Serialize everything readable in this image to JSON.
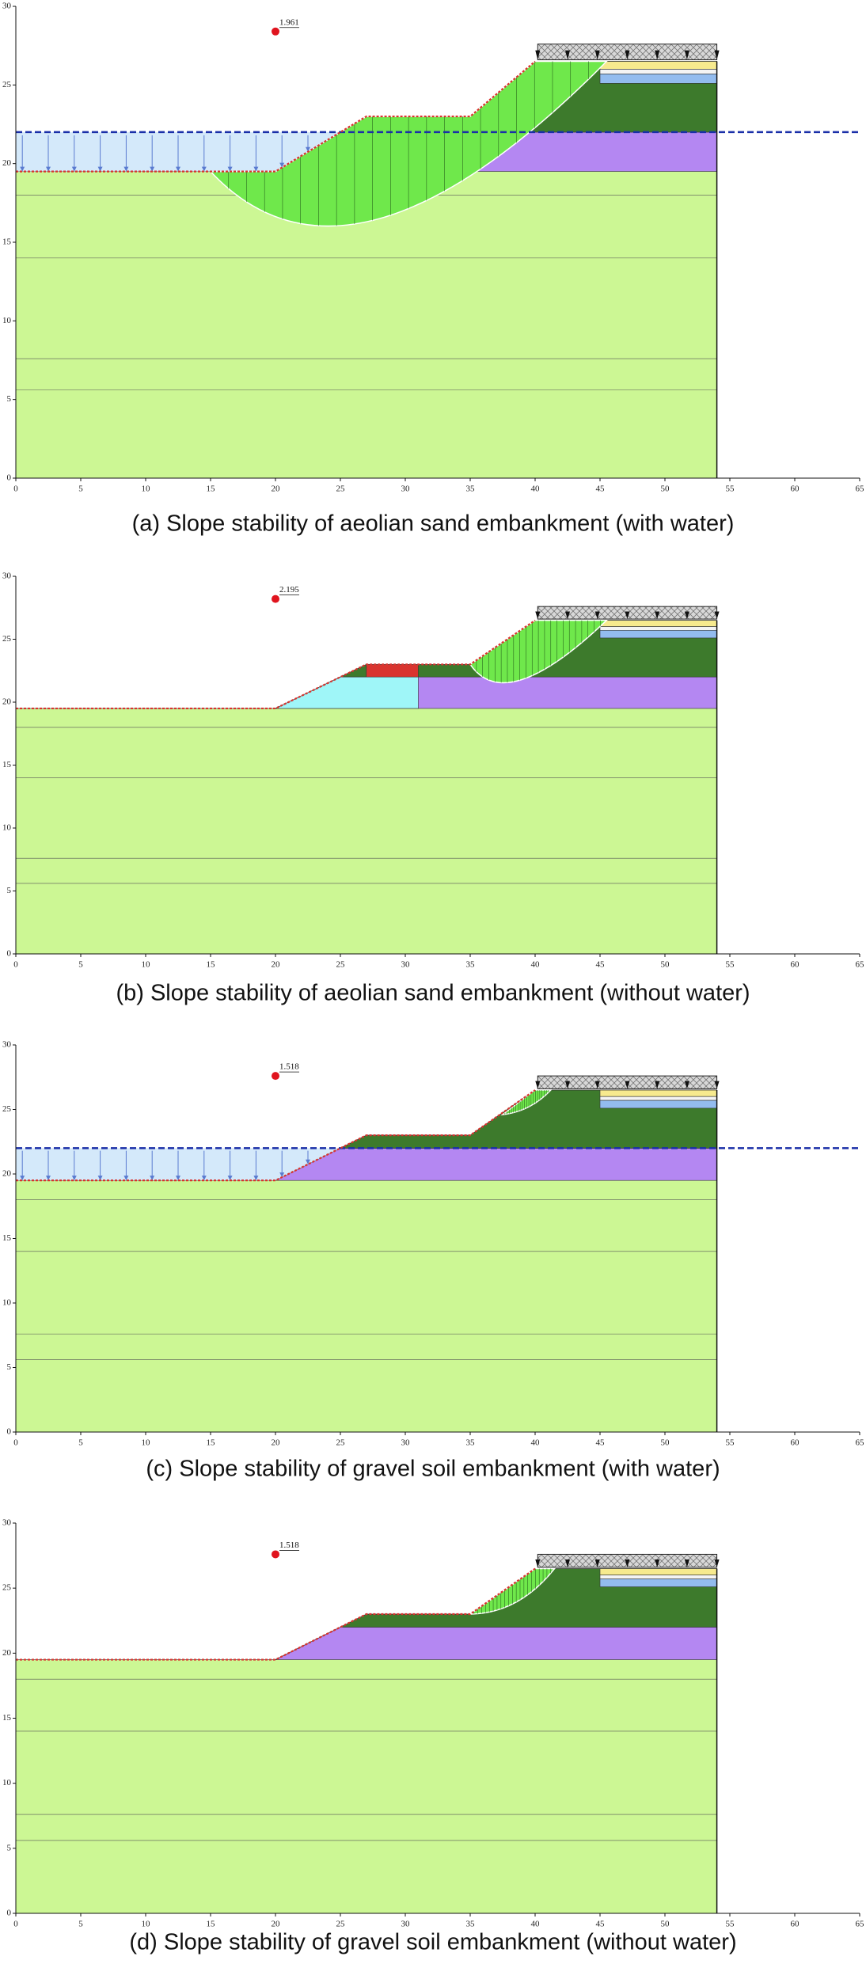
{
  "panels": [
    {
      "caption": "(a) Slope stability of aeolian sand embankment (with water)",
      "factor_of_safety": 1.961,
      "xlim": [
        0,
        65
      ],
      "ylim": [
        0,
        30
      ],
      "xticks": [
        0,
        5,
        10,
        15,
        20,
        25,
        30,
        35,
        40,
        45,
        50,
        55,
        60,
        65
      ],
      "yticks": [
        0,
        5,
        10,
        15,
        20,
        25,
        30
      ]
    },
    {
      "caption": "(b) Slope stability of aeolian sand embankment (without water)",
      "factor_of_safety": 2.195,
      "xlim": [
        0,
        65
      ],
      "ylim": [
        0,
        30
      ],
      "xticks": [
        0,
        5,
        10,
        15,
        20,
        25,
        30,
        35,
        40,
        45,
        50,
        55,
        60,
        65
      ],
      "yticks": [
        0,
        5,
        10,
        15,
        20,
        25,
        30
      ]
    },
    {
      "caption": "(c) Slope stability of gravel soil embankment (with water)",
      "factor_of_safety": 1.518,
      "xlim": [
        0,
        65
      ],
      "ylim": [
        0,
        30
      ],
      "xticks": [
        0,
        5,
        10,
        15,
        20,
        25,
        30,
        35,
        40,
        45,
        50,
        55,
        60,
        65
      ],
      "yticks": [
        0,
        5,
        10,
        15,
        20,
        25,
        30
      ]
    },
    {
      "caption": "(d) Slope stability of gravel soil embankment (without water)",
      "factor_of_safety": 1.518,
      "xlim": [
        0,
        65
      ],
      "ylim": [
        0,
        30
      ],
      "xticks": [
        0,
        5,
        10,
        15,
        20,
        25,
        30,
        35,
        40,
        45,
        50,
        55,
        60,
        65
      ],
      "yticks": [
        0,
        5,
        10,
        15,
        20,
        25,
        30
      ]
    }
  ]
}
